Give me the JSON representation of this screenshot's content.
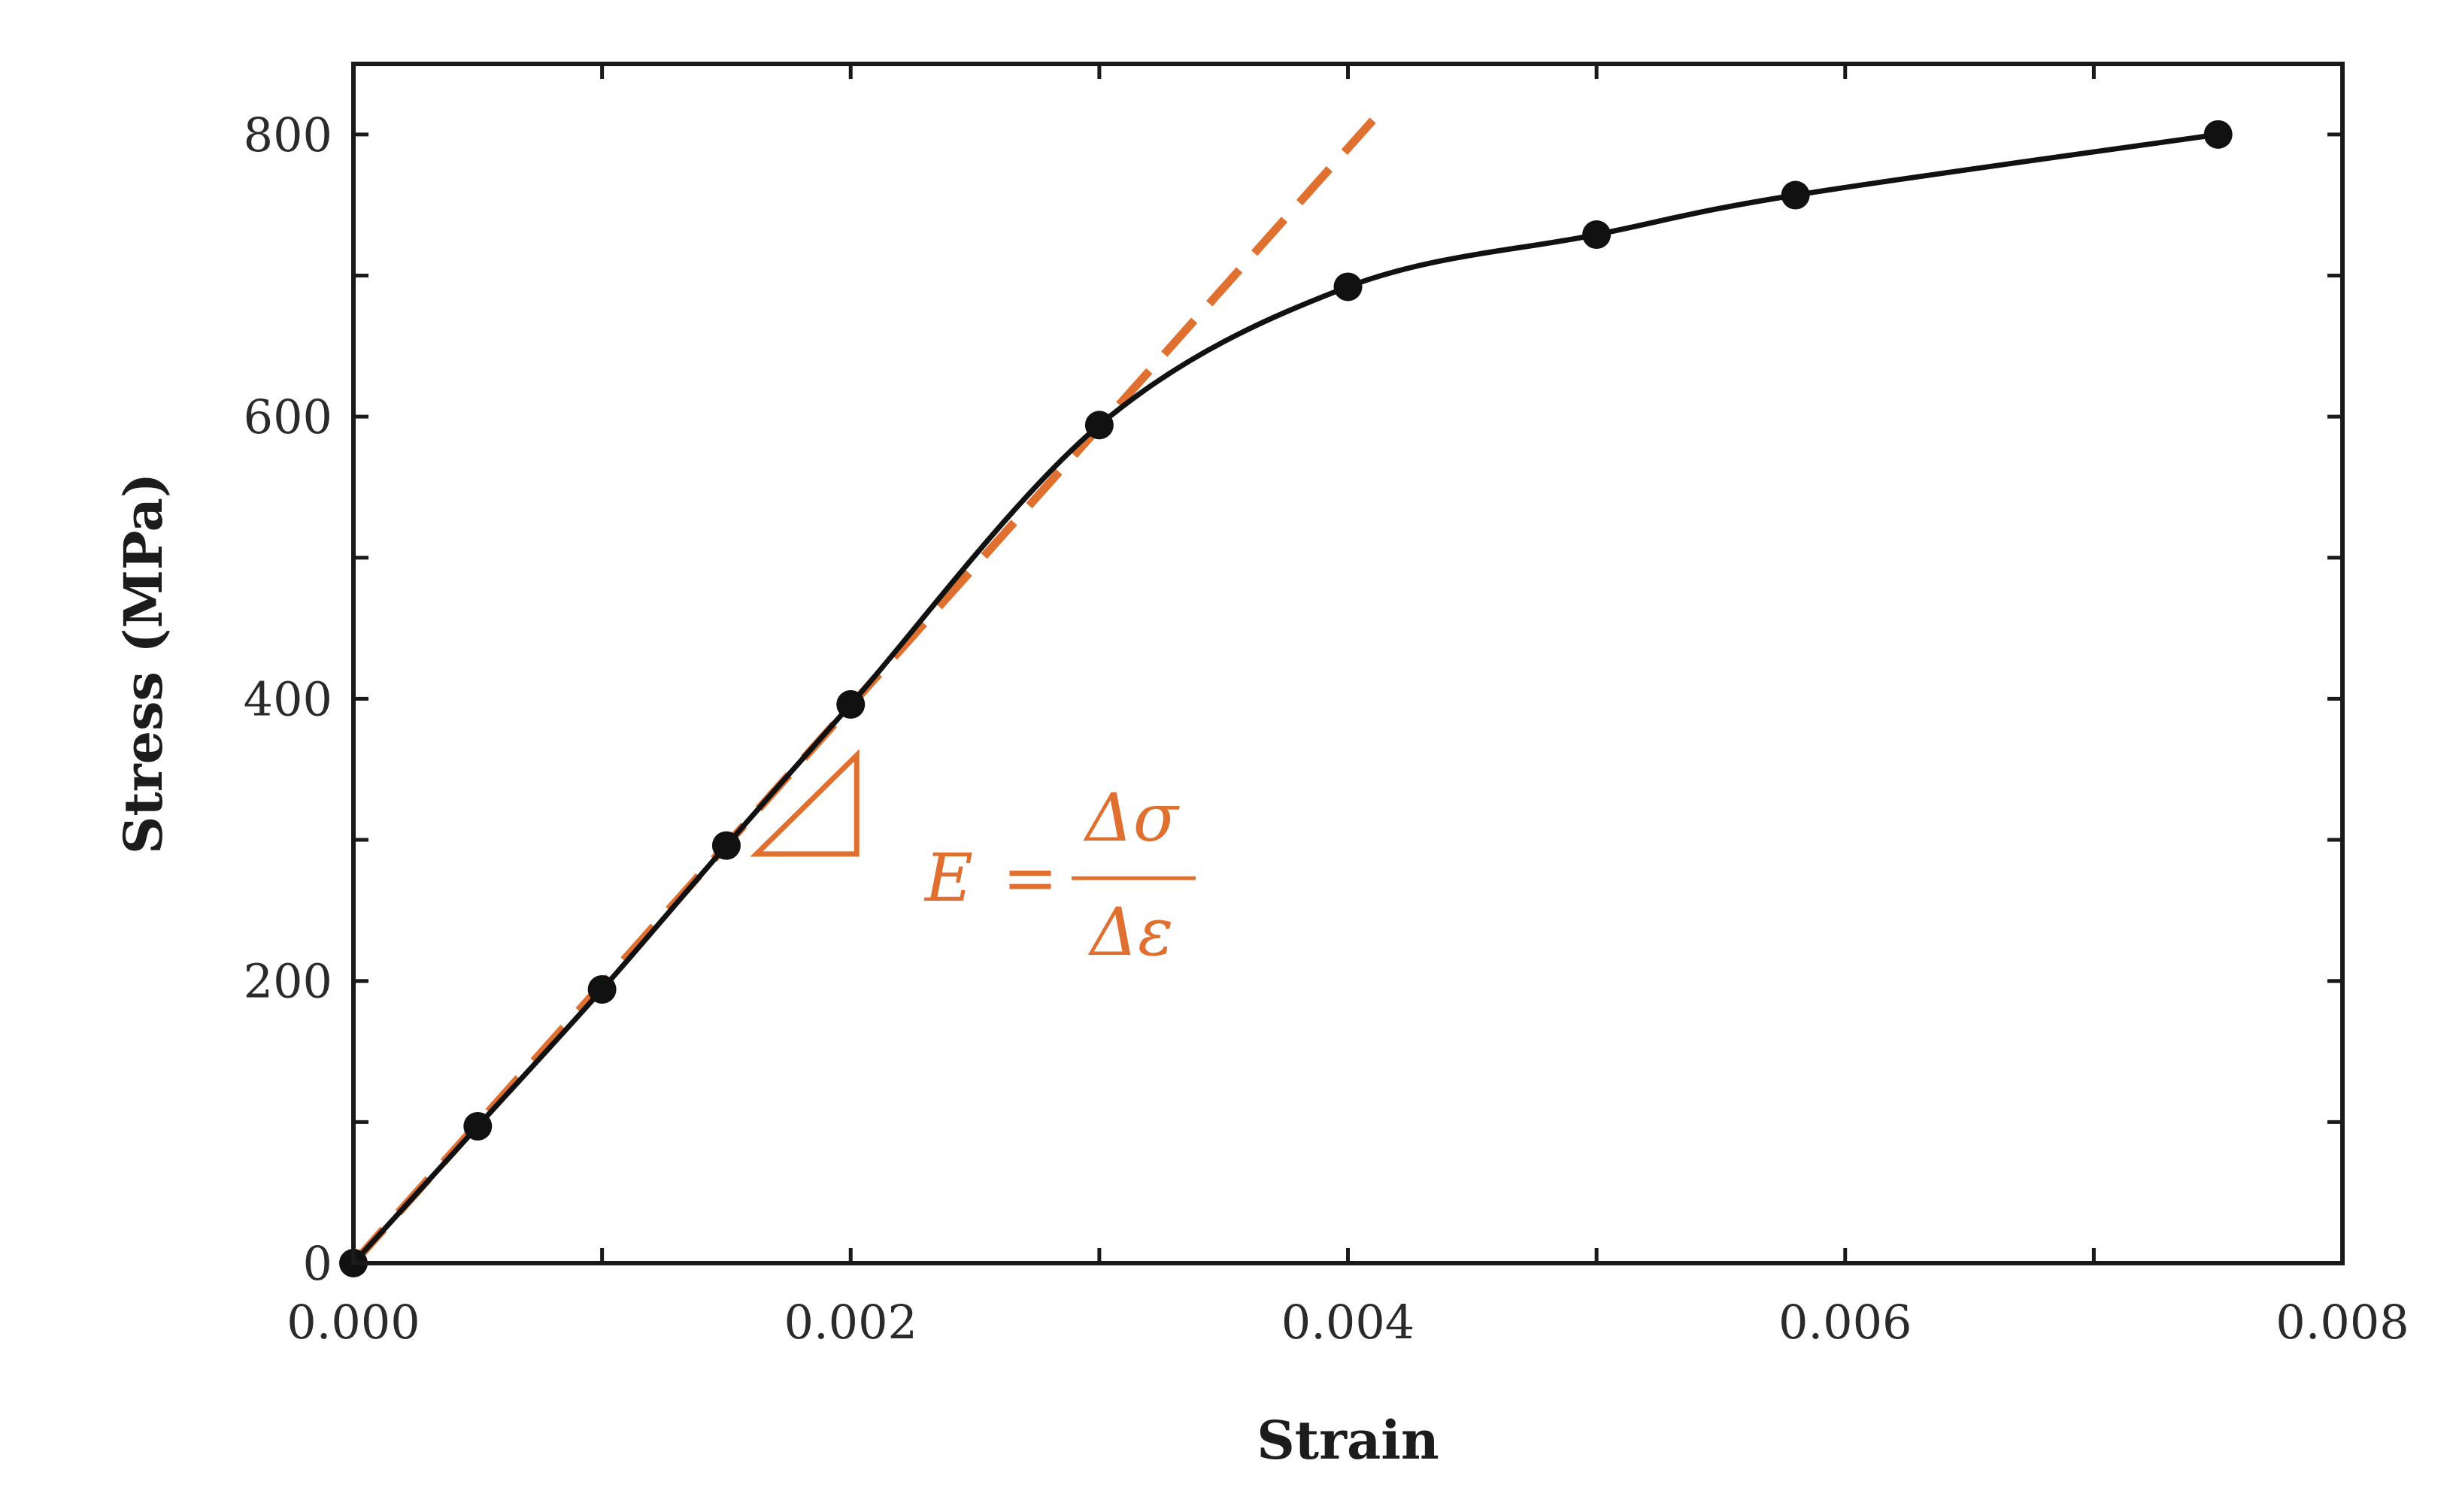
{
  "chart_data": {
    "type": "line",
    "xlabel": "Strain",
    "ylabel": "Stress (MPa)",
    "xlim": [
      0,
      0.008
    ],
    "ylim": [
      0,
      850
    ],
    "x_ticks": [
      "0.000",
      "0.002",
      "0.004",
      "0.006",
      "0.008"
    ],
    "x_tick_values": [
      0,
      0.002,
      0.004,
      0.006,
      0.008
    ],
    "y_ticks": [
      "0",
      "200",
      "400",
      "600",
      "800"
    ],
    "y_tick_values": [
      0,
      200,
      400,
      600,
      800
    ],
    "grid": false,
    "series": [
      {
        "x": [
          0,
          0.0005,
          0.001,
          0.0015,
          0.002,
          0.003,
          0.004,
          0.005,
          0.0058,
          0.0075
        ],
        "y": [
          0,
          97,
          194,
          296,
          396,
          594,
          692,
          729,
          757,
          800
        ],
        "color": "#111111"
      }
    ],
    "fit_line": {
      "x": [
        0,
        0.0041
      ],
      "y": [
        0,
        810
      ],
      "color": "#e07030",
      "style": "dashed"
    },
    "annotation": {
      "lhs": "E",
      "equals": "=",
      "numerator": "Δσ",
      "denominator": "Δε",
      "color": "#e07030"
    }
  }
}
